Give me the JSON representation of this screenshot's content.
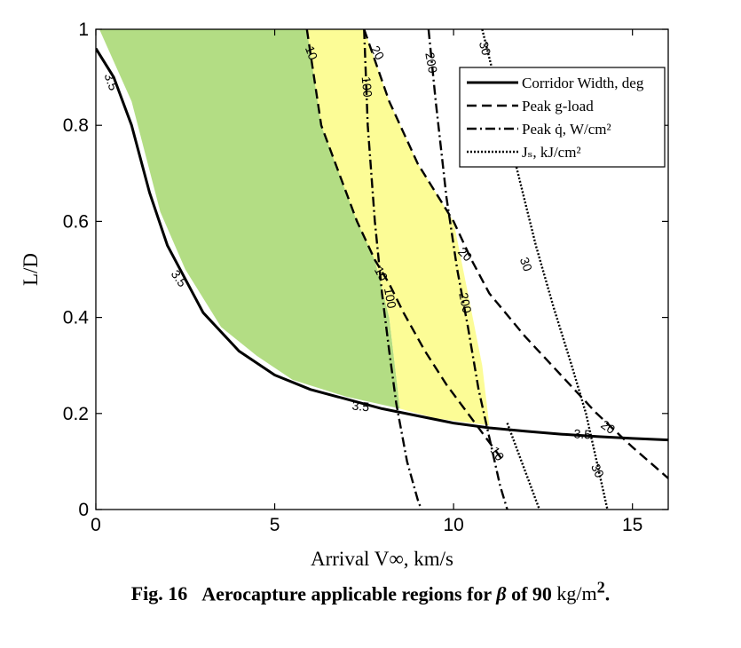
{
  "chart_data": {
    "type": "line",
    "xlabel": "Arrival V∞, km/s",
    "ylabel": "L/D",
    "xlim": [
      0,
      16
    ],
    "ylim": [
      0,
      1
    ],
    "xticks": [
      0,
      5,
      10,
      15
    ],
    "yticks": [
      0,
      0.2,
      0.4,
      0.6,
      0.8,
      1
    ],
    "xtick_labels": [
      "0",
      "5",
      "10",
      "15"
    ],
    "ytick_labels": [
      "0",
      "0.2",
      "0.4",
      "0.6",
      "0.8",
      "1"
    ],
    "grid": false,
    "legend_position": "top-right",
    "colors": {
      "green_region": "#b3dd84",
      "yellow_region": "#fcfc96",
      "lines": "#000000"
    },
    "legend": [
      {
        "label": "Corridor Width, deg",
        "style": "solid"
      },
      {
        "label": "Peak g-load",
        "style": "dashed"
      },
      {
        "label": "Peak q̇, W/cm²",
        "style": "dashdot"
      },
      {
        "label": "Jₛ, kJ/cm²",
        "style": "dotted"
      }
    ],
    "regions": [
      {
        "name": "",
        "color": "#b3dd84",
        "x": [
          0.1,
          0.4,
          1.0,
          1.8,
          2.5,
          3.5,
          4.5,
          5.5,
          7.0,
          8.5,
          8.2,
          8.0,
          7.8,
          7.3,
          6.8,
          6.3,
          5.9,
          0.1
        ],
        "y": [
          1.0,
          0.95,
          0.85,
          0.62,
          0.5,
          0.38,
          0.32,
          0.27,
          0.235,
          0.21,
          0.4,
          0.46,
          0.52,
          0.6,
          0.7,
          0.8,
          1.0,
          1.0
        ]
      },
      {
        "name": "",
        "color": "#fcfc96",
        "x": [
          5.9,
          6.3,
          6.8,
          7.3,
          7.8,
          8.0,
          8.2,
          8.5,
          9.5,
          11.0,
          10.8,
          10.4,
          10.0,
          9.0,
          8.2,
          7.5,
          5.9
        ],
        "y": [
          1.0,
          0.8,
          0.7,
          0.6,
          0.52,
          0.46,
          0.4,
          0.21,
          0.19,
          0.175,
          0.3,
          0.45,
          0.6,
          0.72,
          0.85,
          1.0,
          1.0
        ]
      }
    ],
    "series": [
      {
        "name": "Corridor Width, deg",
        "label": "3.5",
        "style": "solid",
        "x": [
          0,
          0.5,
          1.0,
          1.5,
          2.0,
          3.0,
          4.0,
          5.0,
          6.0,
          7.0,
          8.0,
          9.0,
          10.0,
          11.0,
          12.0,
          13.0,
          14.0,
          15.0,
          16.0
        ],
        "y": [
          0.96,
          0.9,
          0.8,
          0.66,
          0.55,
          0.41,
          0.33,
          0.28,
          0.25,
          0.23,
          0.21,
          0.195,
          0.18,
          0.17,
          0.163,
          0.157,
          0.152,
          0.148,
          0.145
        ]
      },
      {
        "name": "Peak g-load",
        "label": "10",
        "style": "dashed",
        "x": [
          5.9,
          6.3,
          6.8,
          7.3,
          7.8,
          8.2,
          8.6,
          9.2,
          9.8,
          10.4,
          11.0,
          11.4
        ],
        "y": [
          1.0,
          0.8,
          0.7,
          0.6,
          0.52,
          0.47,
          0.41,
          0.33,
          0.26,
          0.2,
          0.14,
          0.1
        ]
      },
      {
        "name": "Peak g-load",
        "label": "20",
        "style": "dashed",
        "x": [
          7.5,
          8.2,
          9.0,
          10.0,
          10.5,
          11.0,
          12.0,
          13.0,
          14.0,
          15.0,
          16.0
        ],
        "y": [
          1.0,
          0.85,
          0.72,
          0.6,
          0.52,
          0.45,
          0.36,
          0.28,
          0.2,
          0.13,
          0.065
        ]
      },
      {
        "name": "Peak q̇, W/cm²",
        "label": "100",
        "style": "dashdot",
        "x": [
          7.5,
          7.6,
          7.8,
          8.0,
          8.2,
          8.4,
          8.7,
          9.0,
          9.1
        ],
        "y": [
          1.0,
          0.8,
          0.6,
          0.45,
          0.33,
          0.22,
          0.1,
          0.02,
          0
        ]
      },
      {
        "name": "Peak q̇, W/cm²",
        "label": "200",
        "style": "dashdot",
        "x": [
          9.3,
          9.5,
          9.8,
          10.1,
          10.4,
          10.7,
          11.0,
          11.3,
          11.5
        ],
        "y": [
          1.0,
          0.85,
          0.65,
          0.5,
          0.38,
          0.25,
          0.15,
          0.05,
          0
        ]
      },
      {
        "name": "Jₛ, kJ/cm²",
        "label": "30",
        "style": "dotted",
        "x": [
          10.8,
          11.3,
          11.8,
          12.3,
          12.8,
          13.3,
          13.7,
          14.0,
          14.3
        ],
        "y": [
          1.0,
          0.85,
          0.7,
          0.55,
          0.42,
          0.3,
          0.2,
          0.1,
          0
        ]
      },
      {
        "name": "Jₛ, kJ/cm²",
        "label": "",
        "style": "dotted",
        "x": [
          11.5,
          11.7,
          11.9,
          12.1,
          12.3,
          12.4
        ],
        "y": [
          0.18,
          0.14,
          0.1,
          0.06,
          0.02,
          0
        ]
      }
    ],
    "annotations": [
      {
        "text": "3.5",
        "x": 0.4,
        "y": 0.89,
        "angle": 70
      },
      {
        "text": "3.5",
        "x": 2.3,
        "y": 0.48,
        "angle": 55
      },
      {
        "text": "3.5",
        "x": 7.4,
        "y": 0.213,
        "angle": 6
      },
      {
        "text": "3.5",
        "x": 13.6,
        "y": 0.155,
        "angle": 3
      },
      {
        "text": "10",
        "x": 6.0,
        "y": 0.95,
        "angle": 70
      },
      {
        "text": "10",
        "x": 7.95,
        "y": 0.49,
        "angle": 62
      },
      {
        "text": "10",
        "x": 11.2,
        "y": 0.115,
        "angle": 55
      },
      {
        "text": "20",
        "x": 7.85,
        "y": 0.95,
        "angle": 60
      },
      {
        "text": "20",
        "x": 10.3,
        "y": 0.53,
        "angle": 45
      },
      {
        "text": "20",
        "x": 14.3,
        "y": 0.17,
        "angle": 35
      },
      {
        "text": "100",
        "x": 7.55,
        "y": 0.88,
        "angle": 85
      },
      {
        "text": "100",
        "x": 8.2,
        "y": 0.44,
        "angle": 80
      },
      {
        "text": "200",
        "x": 9.35,
        "y": 0.93,
        "angle": 80
      },
      {
        "text": "200",
        "x": 10.3,
        "y": 0.43,
        "angle": 78
      },
      {
        "text": "30",
        "x": 10.85,
        "y": 0.96,
        "angle": 75
      },
      {
        "text": "30",
        "x": 12.0,
        "y": 0.51,
        "angle": 70
      },
      {
        "text": "30",
        "x": 14.0,
        "y": 0.08,
        "angle": 65
      }
    ]
  },
  "caption": {
    "number": "Fig. 16",
    "text_before": "Aerocapture applicable regions for ",
    "beta": "β",
    "text_middle": " of 90 ",
    "unit": "kg/m",
    "unit_sup": "2",
    "period": "."
  }
}
